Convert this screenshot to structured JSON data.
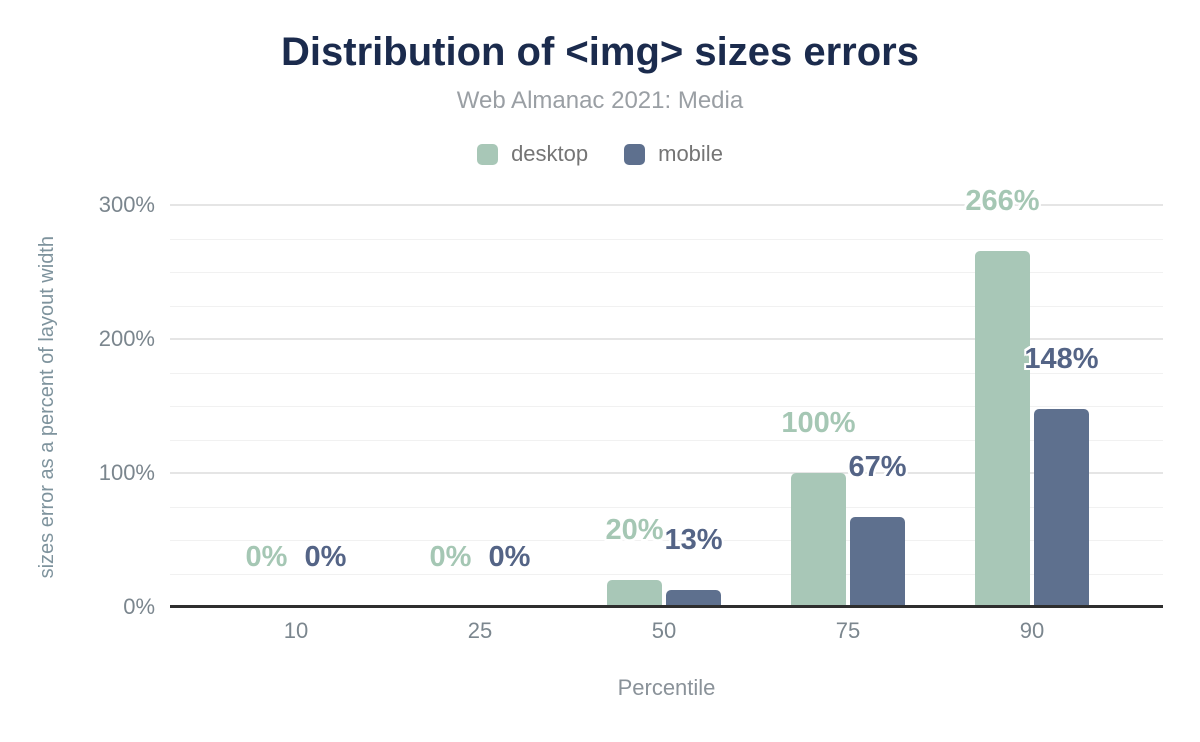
{
  "chart": {
    "title": "Distribution of <img> sizes errors",
    "subtitle": "Web Almanac 2021: Media",
    "xlabel": "Percentile",
    "ylabel": "sizes error as a percent of layout width"
  },
  "colors": {
    "desktop": "#a8c7b7",
    "mobile": "#5e708e",
    "desktop_label": "#a5c7b4",
    "mobile_label": "#546486",
    "title_text": "#1b2b4d",
    "subtitle_text": "#9a9fa4",
    "axis_text": "#7b868e",
    "axis_line": "#2e2e2e",
    "grid_major": "#e5e5e5",
    "grid_minor": "#f1f1f1"
  },
  "chart_data": {
    "type": "bar",
    "title": "Distribution of <img> sizes errors",
    "subtitle": "Web Almanac 2021: Media",
    "xlabel": "Percentile",
    "ylabel": "sizes error as a percent of layout width",
    "categories": [
      "10",
      "25",
      "50",
      "75",
      "90"
    ],
    "series": [
      {
        "name": "desktop",
        "values": [
          0,
          0,
          20,
          100,
          266
        ],
        "labels": [
          "0%",
          "0%",
          "20%",
          "100%",
          "266%"
        ]
      },
      {
        "name": "mobile",
        "values": [
          0,
          0,
          13,
          67,
          148
        ],
        "labels": [
          "0%",
          "0%",
          "13%",
          "67%",
          "148%"
        ]
      }
    ],
    "ylim": [
      0,
      300
    ],
    "ytick_interval": 100,
    "yminor_interval": 25,
    "yticks": [
      "0%",
      "100%",
      "200%",
      "300%"
    ],
    "grid": true,
    "legend_position": "top"
  }
}
